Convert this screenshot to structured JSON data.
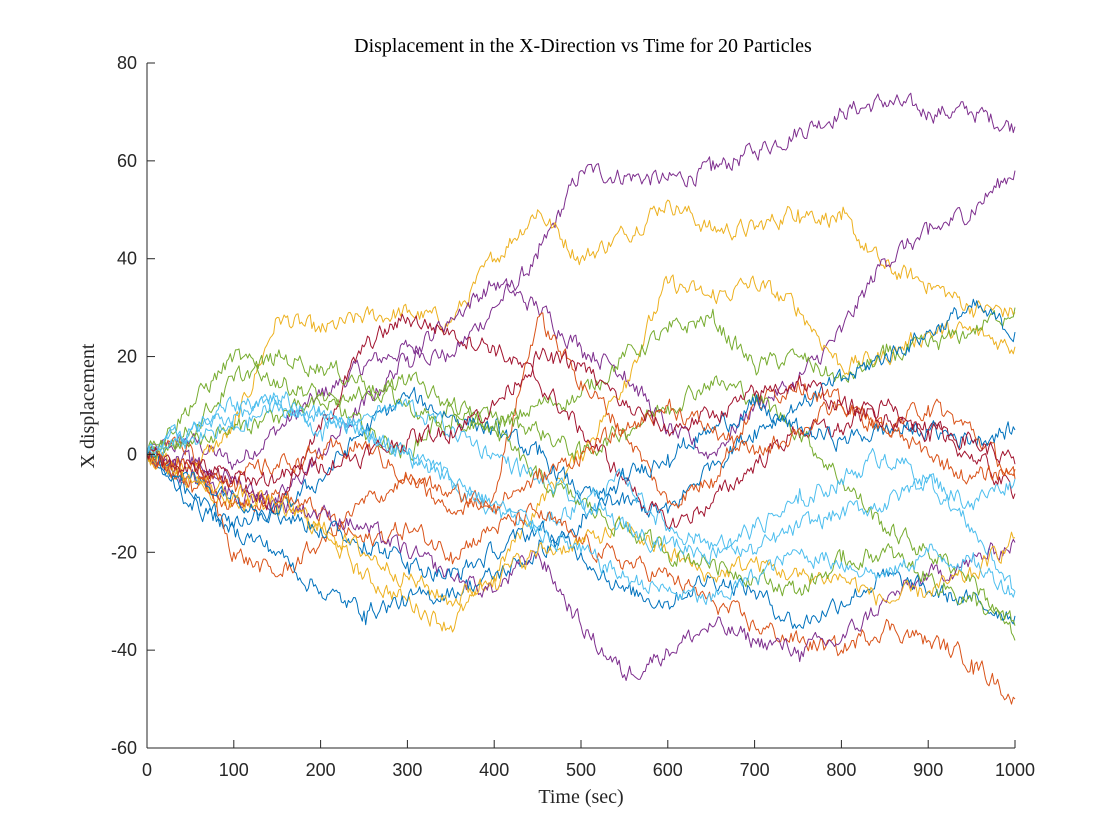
{
  "chart_data": {
    "type": "line",
    "title": "Displacement in the X-Direction vs Time for 20 Particles",
    "xlabel": "Time (sec)",
    "ylabel": "X displacement",
    "xlim": [
      0,
      1000
    ],
    "ylim": [
      -60,
      80
    ],
    "xticks": [
      0,
      100,
      200,
      300,
      400,
      500,
      600,
      700,
      800,
      900,
      1000
    ],
    "yticks": [
      -60,
      -40,
      -20,
      0,
      20,
      40,
      60,
      80
    ],
    "grid": false,
    "legend": "none",
    "x": [
      0,
      50,
      100,
      150,
      200,
      250,
      300,
      350,
      400,
      450,
      500,
      550,
      600,
      650,
      700,
      750,
      800,
      850,
      900,
      950,
      1000
    ],
    "series": [
      {
        "color": "#7E2F8E",
        "values": [
          0,
          3,
          -2,
          5,
          12,
          18,
          22,
          20,
          30,
          40,
          58,
          57,
          56,
          58,
          62,
          66,
          70,
          72,
          70,
          70,
          67
        ]
      },
      {
        "color": "#EDB120",
        "values": [
          0,
          -3,
          5,
          28,
          25,
          28,
          29,
          27,
          40,
          50,
          40,
          45,
          52,
          46,
          46,
          50,
          48,
          38,
          35,
          30,
          29
        ]
      },
      {
        "color": "#7E2F8E",
        "values": [
          0,
          -5,
          -8,
          -10,
          0,
          10,
          20,
          28,
          35,
          30,
          22,
          17,
          5,
          0,
          10,
          15,
          25,
          40,
          45,
          50,
          58
        ]
      },
      {
        "color": "#EDB120",
        "values": [
          0,
          -5,
          -10,
          -10,
          -15,
          -25,
          -30,
          -35,
          -25,
          -10,
          0,
          15,
          35,
          32,
          35,
          30,
          18,
          20,
          25,
          25,
          22
        ]
      },
      {
        "color": "#77AC30",
        "values": [
          0,
          10,
          20,
          15,
          12,
          5,
          0,
          10,
          5,
          10,
          12,
          20,
          25,
          28,
          18,
          20,
          15,
          20,
          22,
          25,
          30
        ]
      },
      {
        "color": "#0072BD",
        "values": [
          0,
          -8,
          -15,
          -12,
          -5,
          5,
          12,
          8,
          5,
          0,
          -8,
          -10,
          -12,
          -2,
          5,
          10,
          15,
          20,
          25,
          30,
          25
        ]
      },
      {
        "color": "#A2142F",
        "values": [
          0,
          -3,
          -5,
          -10,
          5,
          22,
          28,
          25,
          22,
          15,
          5,
          -5,
          -15,
          -10,
          -2,
          5,
          5,
          10,
          5,
          0,
          -8
        ]
      },
      {
        "color": "#D95319",
        "values": [
          0,
          2,
          -20,
          -25,
          -18,
          -10,
          -5,
          -12,
          -8,
          28,
          15,
          5,
          -10,
          -5,
          10,
          15,
          10,
          5,
          10,
          5,
          -5
        ]
      },
      {
        "color": "#77AC30",
        "values": [
          0,
          5,
          15,
          20,
          18,
          15,
          10,
          5,
          8,
          5,
          0,
          5,
          10,
          15,
          12,
          5,
          -5,
          -15,
          -20,
          -25,
          -38
        ]
      },
      {
        "color": "#4DBEEE",
        "values": [
          0,
          5,
          8,
          10,
          8,
          5,
          0,
          -5,
          -12,
          -15,
          -10,
          -5,
          -15,
          -18,
          -20,
          -15,
          -12,
          -10,
          -5,
          -15,
          -28
        ]
      },
      {
        "color": "#0072BD",
        "values": [
          0,
          -10,
          -15,
          -20,
          -28,
          -32,
          -30,
          -28,
          -25,
          -20,
          -15,
          -5,
          0,
          5,
          10,
          5,
          3,
          5,
          5,
          3,
          5
        ]
      },
      {
        "color": "#D95319",
        "values": [
          0,
          -5,
          -10,
          -8,
          -12,
          -18,
          -15,
          -20,
          -15,
          -12,
          -18,
          -22,
          -25,
          -30,
          -35,
          -38,
          -40,
          -35,
          -38,
          -42,
          -50
        ]
      },
      {
        "color": "#7E2F8E",
        "values": [
          0,
          -2,
          -5,
          -10,
          -12,
          -15,
          -20,
          -25,
          -28,
          -20,
          -35,
          -45,
          -40,
          -35,
          -38,
          -40,
          -38,
          -30,
          -25,
          -22,
          -18
        ]
      },
      {
        "color": "#0072BD",
        "values": [
          0,
          -5,
          -8,
          -12,
          -15,
          -18,
          -22,
          -25,
          -20,
          -15,
          -20,
          -28,
          -30,
          -25,
          -28,
          -35,
          -30,
          -25,
          -28,
          -30,
          -33
        ]
      },
      {
        "color": "#EDB120",
        "values": [
          0,
          -5,
          -8,
          -10,
          -15,
          -20,
          -25,
          -30,
          -25,
          -20,
          -18,
          -15,
          -20,
          -25,
          -22,
          -25,
          -25,
          -30,
          -28,
          -25,
          -17
        ]
      },
      {
        "color": "#77AC30",
        "values": [
          0,
          3,
          5,
          8,
          10,
          12,
          15,
          10,
          5,
          -5,
          -10,
          -15,
          -20,
          -22,
          -25,
          -28,
          -22,
          -20,
          -25,
          -30,
          -35
        ]
      },
      {
        "color": "#4DBEEE",
        "values": [
          0,
          3,
          5,
          10,
          5,
          8,
          10,
          5,
          0,
          -5,
          -10,
          -15,
          -18,
          -20,
          -15,
          -10,
          -5,
          0,
          -5,
          -10,
          -5
        ]
      },
      {
        "color": "#D95319",
        "values": [
          0,
          -3,
          -5,
          -2,
          0,
          2,
          -5,
          -8,
          -10,
          -5,
          0,
          5,
          10,
          5,
          0,
          5,
          10,
          5,
          0,
          -5,
          -3
        ]
      },
      {
        "color": "#A2142F",
        "values": [
          0,
          -2,
          -5,
          -5,
          -2,
          0,
          3,
          5,
          10,
          20,
          18,
          10,
          5,
          8,
          12,
          15,
          10,
          8,
          5,
          3,
          -2
        ]
      },
      {
        "color": "#4DBEEE",
        "values": [
          0,
          5,
          10,
          12,
          8,
          5,
          0,
          -5,
          -10,
          -15,
          -20,
          -25,
          -28,
          -30,
          -25,
          -20,
          -22,
          -25,
          -20,
          -22,
          -28
        ]
      }
    ]
  }
}
